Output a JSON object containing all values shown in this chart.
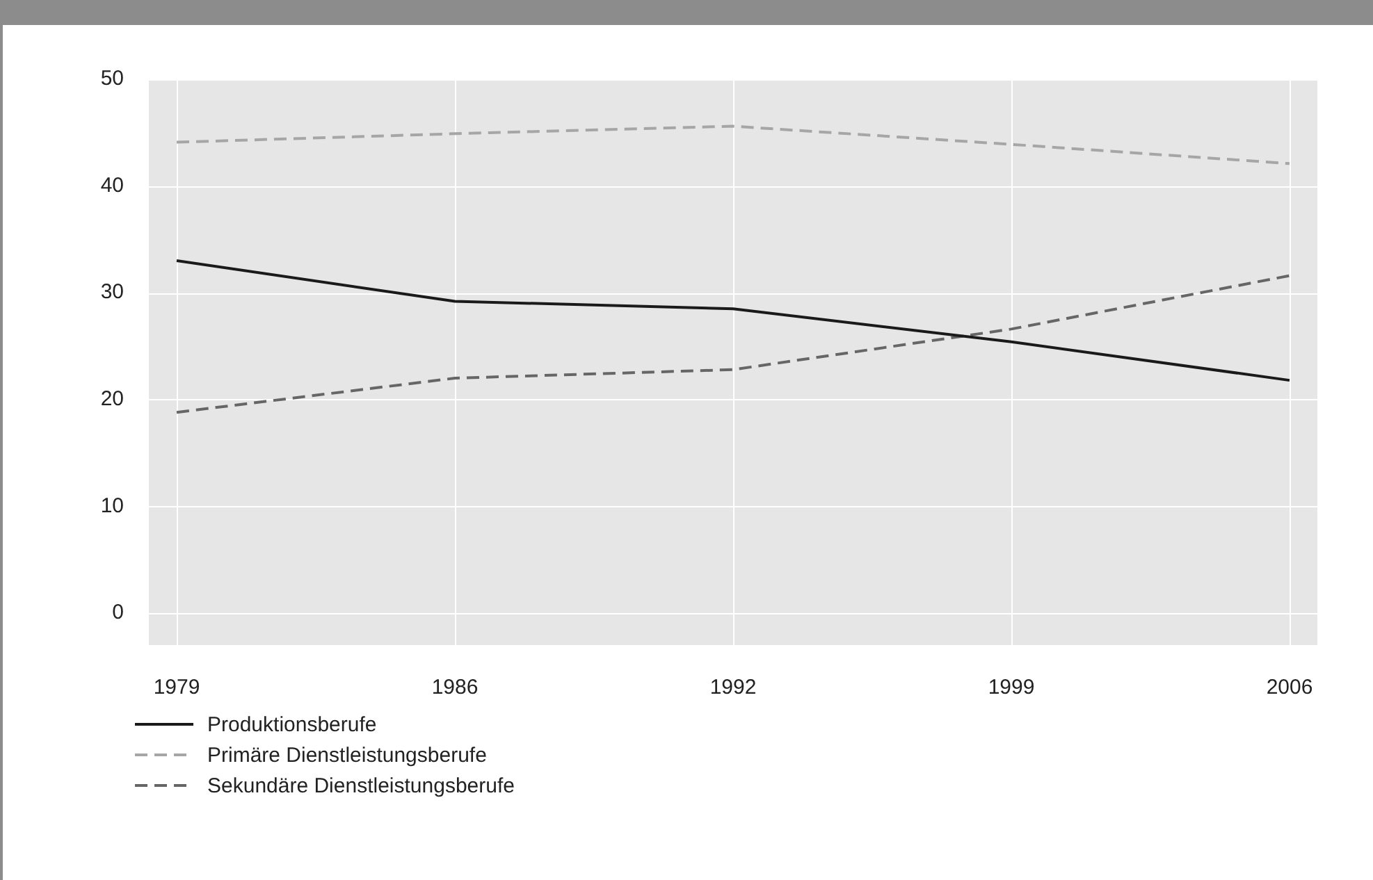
{
  "chart_data": {
    "type": "line",
    "categories": [
      "1979",
      "1986",
      "1992",
      "1999",
      "2006"
    ],
    "series": [
      {
        "name": "Produktionsberufe",
        "color": "#1a1a1a",
        "line_style": "solid",
        "values": [
          33.0,
          29.2,
          28.5,
          25.4,
          21.8
        ]
      },
      {
        "name": "Primäre Dienstleistungsberufe",
        "color": "#a6a6a6",
        "line_style": "dashed",
        "values": [
          44.1,
          44.9,
          45.6,
          43.9,
          42.1
        ]
      },
      {
        "name": "Sekundäre Dienstleistungsberufe",
        "color": "#666666",
        "line_style": "dashed",
        "values": [
          18.8,
          22.0,
          22.8,
          26.6,
          31.6
        ]
      }
    ],
    "ylim": [
      -3,
      50
    ],
    "yticks": [
      0,
      10,
      20,
      30,
      40,
      50
    ],
    "grid": true,
    "legend": "bottom left",
    "marker": "none"
  }
}
